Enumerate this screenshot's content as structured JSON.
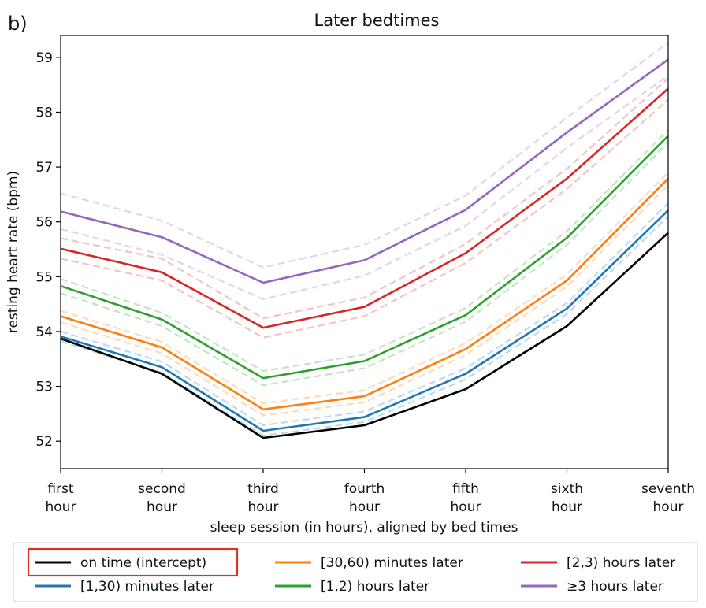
{
  "panel_label": "b)",
  "chart_data": {
    "type": "line",
    "title": "Later bedtimes",
    "xlabel": "sleep session (in hours), aligned by bed times",
    "ylabel": "resting heart rate (bpm)",
    "categories": [
      [
        "first",
        "hour"
      ],
      [
        "second",
        "hour"
      ],
      [
        "third",
        "hour"
      ],
      [
        "fourth",
        "hour"
      ],
      [
        "fifth",
        "hour"
      ],
      [
        "sixth",
        "hour"
      ],
      [
        "seventh",
        "hour"
      ]
    ],
    "ylim": [
      51.5,
      59.4
    ],
    "yticks": [
      52,
      53,
      54,
      55,
      56,
      57,
      58,
      59
    ],
    "grid": false,
    "legend_position": "bottom",
    "series": [
      {
        "name": "on time (intercept)",
        "color": "#000000",
        "highlighted": true,
        "values": [
          53.87,
          53.23,
          52.06,
          52.29,
          52.95,
          54.1,
          55.8
        ]
      },
      {
        "name": "[1,30) minutes later",
        "color": "#1f77b4",
        "values": [
          53.91,
          53.35,
          52.19,
          52.44,
          53.23,
          54.42,
          56.21
        ],
        "ci_upper": [
          54.0,
          53.45,
          52.29,
          52.54,
          53.33,
          54.52,
          56.34
        ],
        "ci_lower": [
          53.82,
          53.25,
          52.1,
          52.35,
          53.13,
          54.32,
          56.1
        ]
      },
      {
        "name": "[30,60) minutes later",
        "color": "#ff7f0e",
        "values": [
          54.28,
          53.71,
          52.58,
          52.82,
          53.68,
          54.93,
          56.79
        ],
        "ci_upper": [
          54.38,
          53.81,
          52.69,
          52.93,
          53.79,
          55.04,
          56.9
        ],
        "ci_lower": [
          54.17,
          53.6,
          52.47,
          52.71,
          53.57,
          54.82,
          56.67
        ]
      },
      {
        "name": "[1,2) hours later",
        "color": "#2ca02c",
        "values": [
          54.83,
          54.22,
          53.15,
          53.46,
          54.3,
          55.71,
          57.57
        ],
        "ci_upper": [
          54.96,
          54.34,
          53.28,
          53.58,
          54.43,
          55.83,
          57.68
        ],
        "ci_lower": [
          54.7,
          54.1,
          53.02,
          53.33,
          54.18,
          55.58,
          57.45
        ]
      },
      {
        "name": "[2,3) hours later",
        "color": "#d62728",
        "values": [
          55.51,
          55.08,
          54.07,
          54.45,
          55.43,
          56.79,
          58.43
        ],
        "ci_upper": [
          55.7,
          55.33,
          54.24,
          54.62,
          55.6,
          56.97,
          58.62
        ],
        "ci_lower": [
          55.33,
          54.93,
          53.89,
          54.28,
          55.25,
          56.6,
          58.23
        ]
      },
      {
        "name": "≥3 hours later",
        "color": "#9467bd",
        "values": [
          56.19,
          55.72,
          54.89,
          55.3,
          56.22,
          57.63,
          58.96
        ],
        "ci_upper": [
          56.52,
          56.02,
          55.17,
          55.58,
          56.48,
          57.9,
          59.27
        ],
        "ci_lower": [
          55.87,
          55.4,
          54.59,
          55.02,
          55.93,
          57.35,
          58.67
        ]
      }
    ]
  }
}
